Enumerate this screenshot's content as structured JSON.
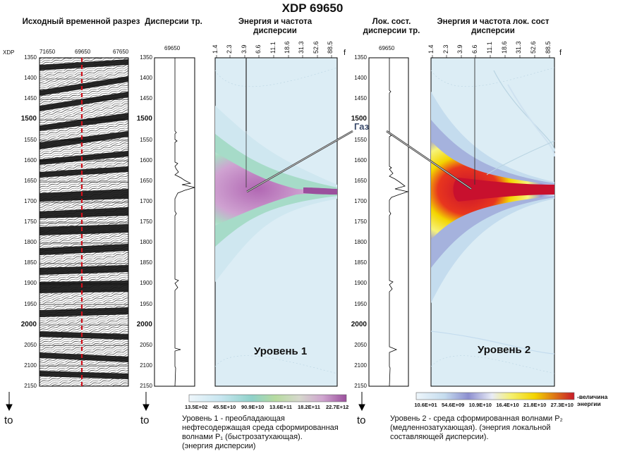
{
  "main_title": "XDP 69650",
  "headers": {
    "original_section": "Исходный временной разрез",
    "dispersion_trace": "Дисперсии тр.",
    "energy_freq": "Энергия и частота дисперсии",
    "local_dispersion": "Лок. сост. дисперсии тр.",
    "local_energy_freq": "Энергия и частота лок. сост дисперсии"
  },
  "axis": {
    "xdp_label": "XDP",
    "section_top_ticks": [
      "71650",
      "69650",
      "67650"
    ],
    "trace_label": "69650",
    "time_ticks": [
      "1350",
      "1400",
      "1450",
      "1500",
      "1550",
      "1600",
      "1650",
      "1700",
      "1750",
      "1800",
      "1850",
      "1900",
      "1950",
      "2000",
      "2050",
      "2100",
      "2150"
    ],
    "major_ticks": [
      "1500",
      "2000"
    ],
    "freq_ticks": [
      "1.4",
      "2.3",
      "3.9",
      "6.6",
      "11.1",
      "18.6",
      "31.3",
      "52.6",
      "88.5"
    ],
    "freq_label": "f",
    "time_arrow_label": "to"
  },
  "gas_label": "Газ",
  "panels": {
    "level1": "Уровень 1",
    "level2": "Уровень 2"
  },
  "scale1": {
    "labels": [
      "13.5E+02",
      "45.5E+10",
      "90.9E+10",
      "13.6E+11",
      "18.2E+11",
      "22.7E+12"
    ],
    "colors": [
      "#eef6fb",
      "#c8e6f0",
      "#8fd1c9",
      "#b7dba0",
      "#d6d8cc",
      "#cfa5cf",
      "#9b4f9d"
    ]
  },
  "scale2": {
    "labels": [
      "10.6E+01",
      "54.6E+09",
      "10.9E+10",
      "16.4E+10",
      "21.8E+10",
      "27.3E+10"
    ],
    "colors": [
      "#eef6fb",
      "#c5dcee",
      "#8d8fd0",
      "#e9ecf6",
      "#f5f070",
      "#f3d400",
      "#c81a2a"
    ],
    "unit_label": "-величина энергии"
  },
  "captions": {
    "level1": [
      "Уровень 1 - преобладающая",
      "нефтесодержащая  среда сформированная",
      "волнами P₁ (быстрозатухающая).",
      "(энергия дисперсии)"
    ],
    "level2": [
      "Уровень 2 - среда сформированная  волнами P₂",
      "(медленнозатухающая).       (энергия локальной",
      "составляющей дисперсии)."
    ]
  }
}
